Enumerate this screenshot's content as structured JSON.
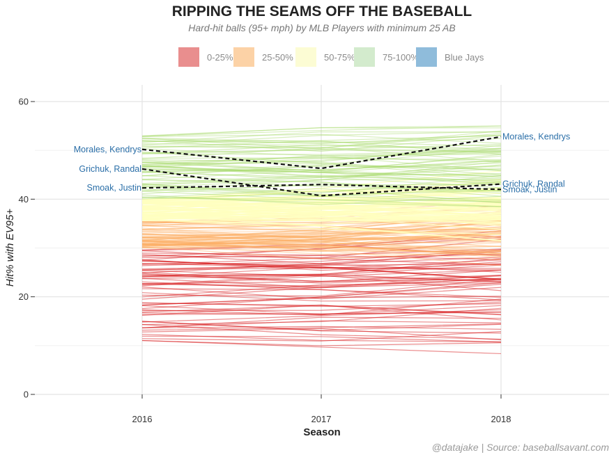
{
  "chart_data": {
    "type": "line",
    "title": "RIPPING THE SEAMS OFF THE BASEBALL",
    "subtitle": "Hard-hit balls (95+ mph) by MLB Players with minimum 25 AB",
    "caption": "@datajake | Source: baseballsavant.com",
    "xlabel": "Season",
    "ylabel": "Hit% with EV95+",
    "x": [
      2016,
      2017,
      2018
    ],
    "x_tick_labels": [
      "2016",
      "2017",
      "2018"
    ],
    "ylim": [
      0,
      60
    ],
    "y_ticks": [
      0,
      20,
      40,
      60
    ],
    "y_tick_labels": [
      "0",
      "20",
      "40",
      "60"
    ],
    "grid": true,
    "legend_position": "top",
    "legend": [
      {
        "label": "0-25%",
        "color": "#e98e8e"
      },
      {
        "label": "25-50%",
        "color": "#fcd2a6"
      },
      {
        "label": "50-75%",
        "color": "#fcfcd4"
      },
      {
        "label": "75-100%",
        "color": "#d3ebcd"
      },
      {
        "label": "Blue Jays",
        "color": "#8fbcdb"
      }
    ],
    "group_colors": {
      "q1": "#d7191c",
      "q2": "#fdae61",
      "q3": "#ffffbf",
      "q4": "#a6d96a"
    },
    "group_ranges": {
      "q1": [
        11,
        30
      ],
      "q2": [
        30,
        35.5
      ],
      "q3": [
        35.5,
        40
      ],
      "q4": [
        40,
        53
      ]
    },
    "background_players_per_group": 70,
    "highlighted_series": [
      {
        "name": "Morales, Kendrys",
        "values": [
          50.2,
          46.3,
          52.8
        ]
      },
      {
        "name": "Grichuk, Randal",
        "values": [
          46.2,
          40.7,
          43.1
        ]
      },
      {
        "name": "Smoak, Justin",
        "values": [
          42.3,
          43.0,
          42.0
        ]
      }
    ]
  }
}
